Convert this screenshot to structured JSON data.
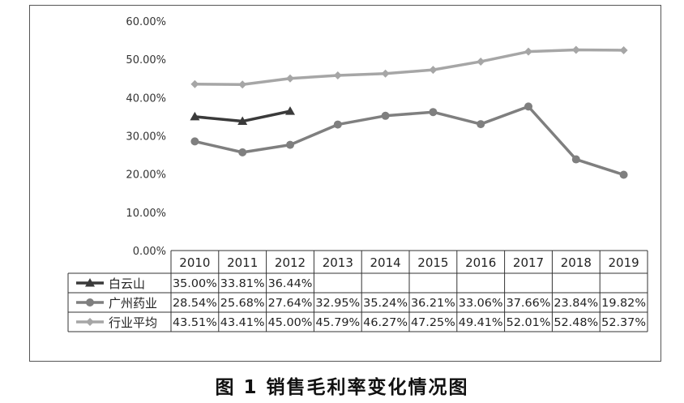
{
  "caption": "图 1   销售毛利率变化情况图",
  "chart_data": {
    "type": "line",
    "title": "",
    "xlabel": "",
    "ylabel": "",
    "ylim": [
      0,
      60
    ],
    "yticks": [
      "0.00%",
      "10.00%",
      "20.00%",
      "30.00%",
      "40.00%",
      "50.00%",
      "60.00%"
    ],
    "categories": [
      "2010",
      "2011",
      "2012",
      "2013",
      "2014",
      "2015",
      "2016",
      "2017",
      "2018",
      "2019"
    ],
    "grid": false,
    "legend": "data-table-left",
    "series": [
      {
        "name": "白云山",
        "marker": "triangle",
        "color": "#3a3a3a",
        "values": [
          35.0,
          33.81,
          36.44,
          null,
          null,
          null,
          null,
          null,
          null,
          null
        ],
        "labels": [
          "35.00%",
          "33.81%",
          "36.44%",
          "",
          "",
          "",
          "",
          "",
          "",
          ""
        ]
      },
      {
        "name": "广州药业",
        "marker": "circle",
        "color": "#7f7f7f",
        "values": [
          28.54,
          25.68,
          27.64,
          32.95,
          35.24,
          36.21,
          33.06,
          37.66,
          23.84,
          19.82
        ],
        "labels": [
          "28.54%",
          "25.68%",
          "27.64%",
          "32.95%",
          "35.24%",
          "36.21%",
          "33.06%",
          "37.66%",
          "23.84%",
          "19.82%"
        ]
      },
      {
        "name": "行业平均",
        "marker": "diamond",
        "color": "#a6a6a6",
        "values": [
          43.51,
          43.41,
          45.0,
          45.79,
          46.27,
          47.25,
          49.41,
          52.01,
          52.48,
          52.37
        ],
        "labels": [
          "43.51%",
          "43.41%",
          "45.00%",
          "45.79%",
          "46.27%",
          "47.25%",
          "49.41%",
          "52.01%",
          "52.48%",
          "52.37%"
        ]
      }
    ]
  }
}
